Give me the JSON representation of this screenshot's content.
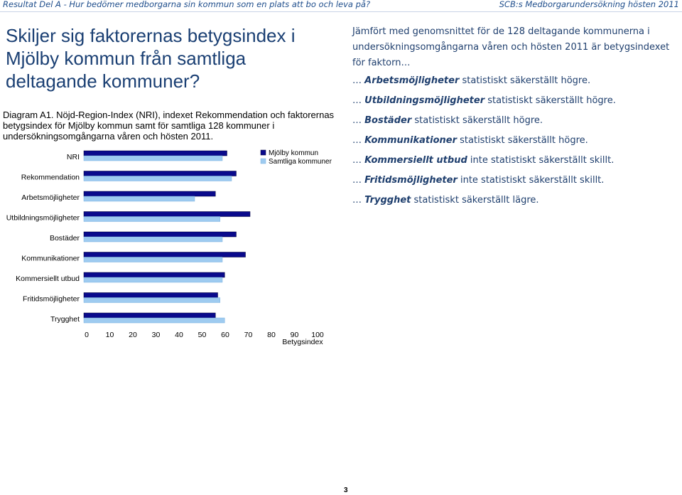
{
  "header": {
    "left": "Resultat Del A - Hur bedömer medborgarna sin kommun som en plats att bo och leva på?",
    "right": "SCB:s Medborgarundersökning hösten 2011"
  },
  "title": "Skiljer sig faktorernas betygsindex i Mjölby kommun från samtliga deltagande kommuner?",
  "caption": "Diagram A1. Nöjd-Region-Index (NRI), indexet Rekommendation och faktorernas betygsindex för Mjölby kommun samt för samtliga 128 kommuner i undersökningsomgångarna våren och hösten 2011.",
  "chart_data": {
    "type": "bar",
    "orientation": "horizontal",
    "categories": [
      "NRI",
      "Rekommendation",
      "Arbetsmöjligheter",
      "Utbildningsmöjligheter",
      "Bostäder",
      "Kommunikationer",
      "Kommersiellt utbud",
      "Fritidsmöjligheter",
      "Trygghet"
    ],
    "series": [
      {
        "name": "Mjölby kommun",
        "color": "#0a0a8c",
        "values": [
          62,
          66,
          57,
          72,
          66,
          70,
          61,
          58,
          57
        ]
      },
      {
        "name": "Samtliga kommuner",
        "color": "#9ecbf0",
        "values": [
          60,
          64,
          48,
          59,
          60,
          60,
          60,
          59,
          61
        ]
      }
    ],
    "xlim": [
      0,
      100
    ],
    "xticks": [
      "0",
      "10",
      "20",
      "30",
      "40",
      "50",
      "60",
      "70",
      "80",
      "90",
      "100"
    ],
    "xlabel": "Betygsindex",
    "legend": "top-right",
    "grid": false
  },
  "summary": {
    "intro": "Jämfört med genomsnittet för de 128 deltagande kommunerna i undersökningsomgångarna våren och hösten 2011 är betygsindexet för faktorn…",
    "findings": [
      {
        "prefix": "… ",
        "factor": "Arbetsmöjligheter",
        "text": " statistiskt säkerställt högre."
      },
      {
        "prefix": "… ",
        "factor": "Utbildningsmöjligheter",
        "text": " statistiskt säkerställt högre."
      },
      {
        "prefix": "… ",
        "factor": "Bostäder",
        "text": " statistiskt säkerställt högre."
      },
      {
        "prefix": "… ",
        "factor": "Kommunikationer",
        "text": " statistiskt säkerställt högre."
      },
      {
        "prefix": "… ",
        "factor": "Kommersiellt utbud",
        "text": " inte statistiskt säkerställt skillt."
      },
      {
        "prefix": "… ",
        "factor": "Fritidsmöjligheter",
        "text": " inte statistiskt säkerställt skillt."
      },
      {
        "prefix": "… ",
        "factor": "Trygghet",
        "text": " statistiskt säkerställt lägre."
      }
    ]
  },
  "page_number": "3"
}
